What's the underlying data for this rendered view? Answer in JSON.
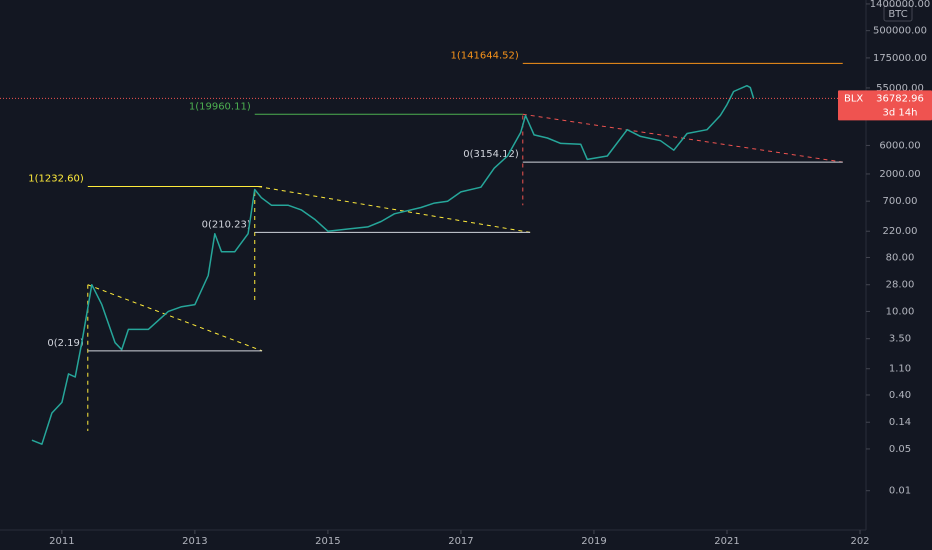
{
  "chart_data": {
    "type": "line",
    "currency": "BTC",
    "yscale": "log",
    "xlim": [
      2010.07,
      2023.09
    ],
    "ylim": [
      0.0022,
      1630000
    ],
    "xticks": [
      2011,
      2013,
      2015,
      2017,
      2019,
      2021,
      {
        "value": 2023,
        "label": "202"
      }
    ],
    "yticks": [
      {
        "value": 1400000,
        "label": "1400000.00"
      },
      {
        "value": 500000,
        "label": "500000.00"
      },
      {
        "value": 175000,
        "label": "175000.00"
      },
      {
        "value": 55000,
        "label": "55000.00"
      },
      {
        "value": 6000,
        "label": "6000.00"
      },
      {
        "value": 2000,
        "label": "2000.00"
      },
      {
        "value": 700,
        "label": "700.00"
      },
      {
        "value": 220,
        "label": "220.00"
      },
      {
        "value": 80,
        "label": "80.00"
      },
      {
        "value": 28,
        "label": "28.00"
      },
      {
        "value": 10,
        "label": "10.00"
      },
      {
        "value": 3.5,
        "label": "3.50"
      },
      {
        "value": 1.1,
        "label": "1.10"
      },
      {
        "value": 0.4,
        "label": "0.40"
      },
      {
        "value": 0.14,
        "label": "0.14"
      },
      {
        "value": 0.05,
        "label": "0.05"
      },
      {
        "value": 0.01,
        "label": "0.01"
      }
    ],
    "series": [
      {
        "name": "BLX",
        "color": "#26a69a",
        "x": [
          2010.55,
          2010.7,
          2010.85,
          2011.0,
          2011.1,
          2011.2,
          2011.3,
          2011.45,
          2011.6,
          2011.8,
          2011.9,
          2012.0,
          2012.3,
          2012.6,
          2012.8,
          2013.0,
          2013.2,
          2013.3,
          2013.4,
          2013.6,
          2013.8,
          2013.9,
          2014.0,
          2014.15,
          2014.4,
          2014.6,
          2014.8,
          2015.0,
          2015.3,
          2015.6,
          2015.8,
          2016.0,
          2016.4,
          2016.6,
          2016.8,
          2017.0,
          2017.3,
          2017.5,
          2017.7,
          2017.9,
          2017.97,
          2018.1,
          2018.3,
          2018.5,
          2018.8,
          2018.9,
          2019.2,
          2019.5,
          2019.7,
          2020.0,
          2020.2,
          2020.4,
          2020.7,
          2020.9,
          2021.0,
          2021.1,
          2021.3,
          2021.35,
          2021.4
        ],
        "values": [
          0.07,
          0.06,
          0.2,
          0.3,
          0.9,
          0.8,
          3,
          28,
          13,
          3,
          2.3,
          5,
          5,
          10,
          12,
          13,
          40,
          200,
          100,
          100,
          200,
          1100,
          800,
          600,
          600,
          500,
          350,
          220,
          240,
          260,
          320,
          430,
          550,
          650,
          700,
          1000,
          1200,
          2500,
          4000,
          10000,
          19000,
          9000,
          8000,
          6500,
          6300,
          3500,
          4000,
          11000,
          8500,
          7200,
          5000,
          9500,
          11000,
          19000,
          29000,
          48000,
          60000,
          56000,
          36782.96
        ]
      }
    ],
    "last_price": 36782.96,
    "last_price_color": "#ef5350",
    "countdown": "3d 14h",
    "levels": [
      {
        "label": "1(141644.52)",
        "value": 141644.52,
        "x": [
          2017.93,
          2022.74
        ],
        "color": "#f7931a"
      },
      {
        "label": "1(19960.11)",
        "value": 19960.11,
        "x": [
          2013.9,
          2017.93
        ],
        "color": "#4caf50"
      },
      {
        "label": "1(1232.60)",
        "value": 1232.6,
        "x": [
          2011.39,
          2014.01
        ],
        "color": "#ffeb3b"
      },
      {
        "label": "0(3154.12)",
        "value": 3154.12,
        "x": [
          2017.93,
          2022.74
        ],
        "color": "#d1d4dc"
      },
      {
        "label": "0(210.23)",
        "value": 210.23,
        "x": [
          2013.9,
          2018.04
        ],
        "color": "#d1d4dc"
      },
      {
        "label": "0(2.19)",
        "value": 2.19,
        "x": [
          2011.39,
          2014.01
        ],
        "color": "#d1d4dc"
      }
    ],
    "trendlines": [
      {
        "x": [
          2011.39,
          2014.01
        ],
        "y": [
          28,
          2.19
        ],
        "color": "#ffeb3b"
      },
      {
        "x": [
          2011.39,
          2011.39
        ],
        "y": [
          28,
          0.1
        ],
        "color": "#ffeb3b"
      },
      {
        "x": [
          2013.95,
          2018.04
        ],
        "y": [
          1232.6,
          210.23
        ],
        "color": "#ffeb3b"
      },
      {
        "x": [
          2013.9,
          2013.9
        ],
        "y": [
          1000,
          15
        ],
        "color": "#ffeb3b"
      },
      {
        "x": [
          2017.93,
          2022.74
        ],
        "y": [
          19960.11,
          3154.12
        ],
        "color": "#ef5350"
      },
      {
        "x": [
          2017.93,
          2017.93
        ],
        "y": [
          19000,
          600
        ],
        "color": "#ef5350"
      }
    ]
  }
}
